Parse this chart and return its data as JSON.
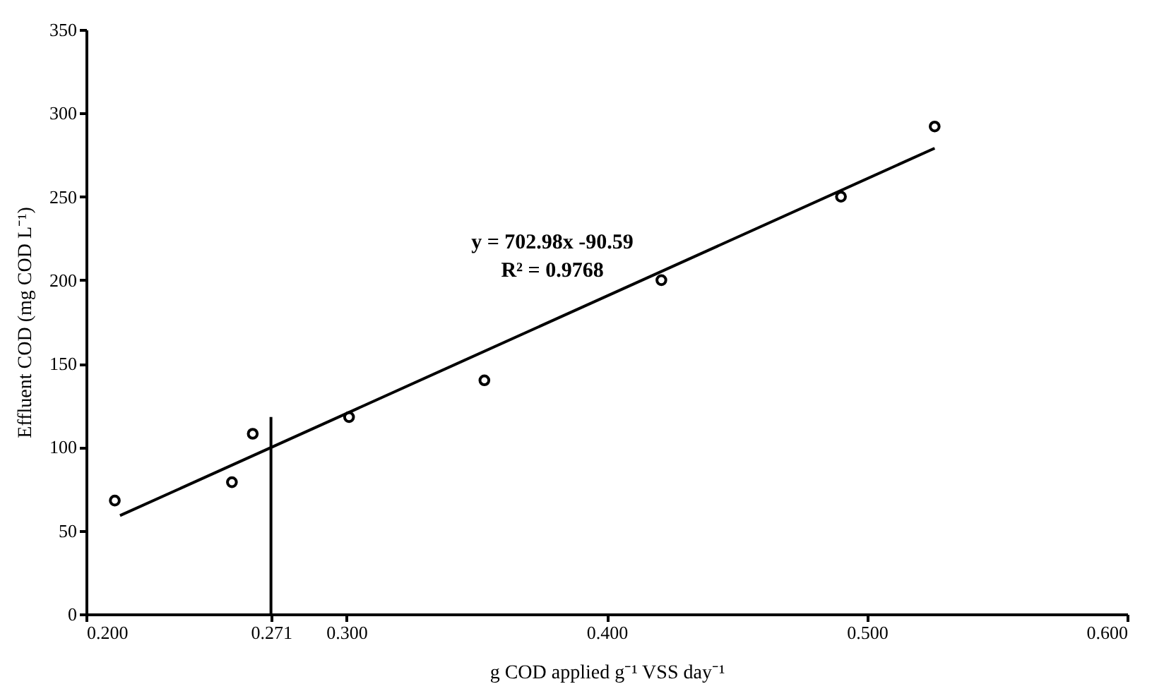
{
  "chart_data": {
    "type": "scatter",
    "xlabel": "g COD applied g⁻¹ VSS day⁻¹",
    "ylabel": "Effluent COD (mg COD L⁻¹)",
    "xlim": [
      0.2,
      0.6
    ],
    "ylim": [
      0,
      350
    ],
    "xticks": [
      {
        "value": 0.2,
        "label": "0.200"
      },
      {
        "value": 0.271,
        "label": "0.271"
      },
      {
        "value": 0.3,
        "label": "0.300"
      },
      {
        "value": 0.4,
        "label": "0.400"
      },
      {
        "value": 0.5,
        "label": "0.500"
      },
      {
        "value": 0.6,
        "label": "0.600"
      }
    ],
    "yticks": [
      0,
      50,
      100,
      150,
      200,
      250,
      300,
      350
    ],
    "grid": false,
    "series": [
      {
        "type": "scatter",
        "marker": "circle",
        "color": "#000000",
        "x": [
          0.211,
          0.256,
          0.264,
          0.301,
          0.353,
          0.421,
          0.49,
          0.526
        ],
        "values": [
          68,
          79,
          108,
          118,
          140,
          200,
          250,
          292
        ]
      },
      {
        "type": "line",
        "marker": "none",
        "line_style": "solid",
        "color": "#000000",
        "x": [
          0.213,
          0.526
        ],
        "values": [
          59,
          279
        ]
      },
      {
        "type": "line",
        "marker": "none",
        "line_style": "solid",
        "color": "#000000",
        "x": [
          0.271,
          0.271
        ],
        "values": [
          0,
          118
        ]
      }
    ],
    "annotations": [
      "y = 702.98x -90.59",
      "R² = 0.9768"
    ]
  }
}
